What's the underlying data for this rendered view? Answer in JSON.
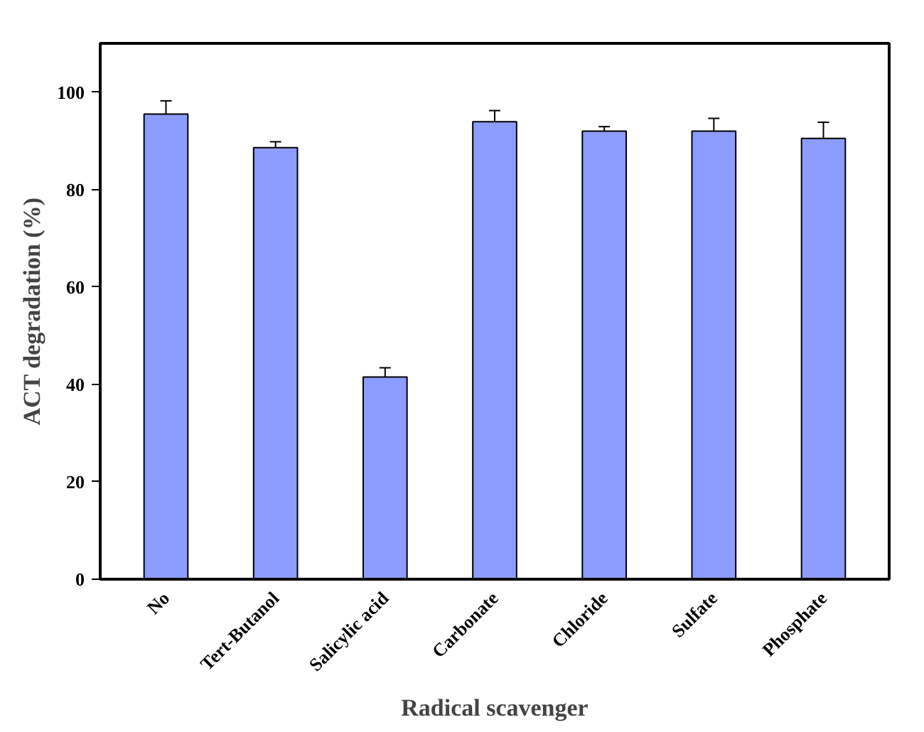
{
  "chart_data": {
    "type": "bar",
    "xlabel": "Radical scavenger",
    "ylabel": "ACT degradation (%)",
    "categories": [
      "No",
      "Tert-Butanol",
      "Salicylic acid",
      "Carbonate",
      "Chloride",
      "Sulfate",
      "Phosphate"
    ],
    "values": [
      95.5,
      88.6,
      41.5,
      93.9,
      92.0,
      92.0,
      90.5
    ],
    "errors": [
      2.7,
      1.2,
      1.9,
      2.3,
      0.9,
      2.6,
      3.3
    ],
    "color": "#8c9cff",
    "ylim": [
      0,
      110
    ],
    "yticks": [
      0,
      20,
      40,
      60,
      80,
      100
    ],
    "grid": false
  }
}
